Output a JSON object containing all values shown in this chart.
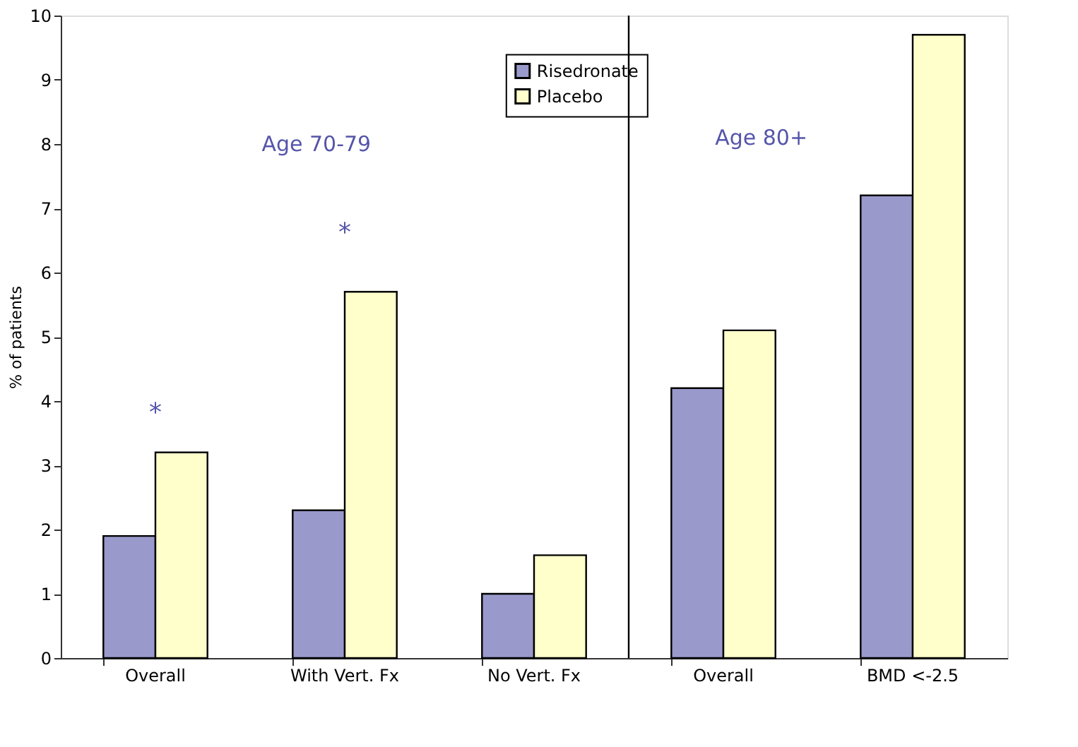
{
  "chart_data": {
    "type": "bar",
    "ylabel": "% of patients",
    "categories": [
      "Overall",
      "With Vert. Fx",
      "No Vert. Fx",
      "Overall",
      "BMD <-2.5"
    ],
    "series": [
      {
        "name": "Risedronate",
        "color": "#9999cc",
        "values": [
          1.9,
          2.3,
          1.0,
          4.2,
          7.2
        ]
      },
      {
        "name": "Placebo",
        "color": "#ffffcc",
        "values": [
          3.2,
          5.7,
          1.6,
          5.1,
          9.7
        ]
      }
    ],
    "ylim": [
      0,
      10
    ],
    "yticks": [
      0,
      1,
      2,
      3,
      4,
      5,
      6,
      7,
      8,
      9,
      10
    ],
    "grid": false,
    "legend": "top",
    "annotations": [
      "Age 70-79",
      "Age 80+",
      "*",
      "*"
    ]
  }
}
